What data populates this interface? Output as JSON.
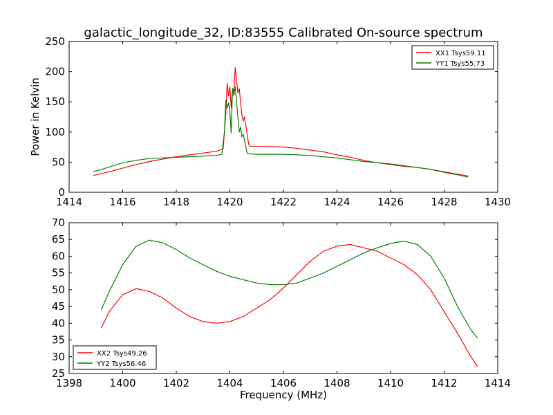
{
  "figure": {
    "title": "galactic_longitude_32, ID:83555 Calibrated On-source spectrum"
  },
  "chart_data": [
    {
      "type": "line",
      "title": "galactic_longitude_32, ID:83555 Calibrated On-source spectrum",
      "xlabel": "",
      "ylabel": "Power in Kelvin",
      "xlim": [
        1414,
        1430
      ],
      "ylim": [
        0,
        250
      ],
      "xticks": [
        1414,
        1416,
        1418,
        1420,
        1422,
        1424,
        1426,
        1428,
        1430
      ],
      "yticks": [
        0,
        50,
        100,
        150,
        200,
        250
      ],
      "grid": false,
      "legend": "top-right",
      "series": [
        {
          "name": "XX1 Tsys59.11",
          "color": "#ff0000",
          "x": [
            1414.9,
            1415.5,
            1416,
            1416.5,
            1417,
            1417.5,
            1418,
            1418.5,
            1419,
            1419.5,
            1419.75,
            1419.85,
            1419.9,
            1419.95,
            1420.0,
            1420.05,
            1420.1,
            1420.15,
            1420.2,
            1420.25,
            1420.3,
            1420.35,
            1420.4,
            1420.45,
            1420.5,
            1420.55,
            1420.6,
            1420.65,
            1420.7,
            1420.75,
            1421,
            1421.5,
            1422,
            1422.5,
            1423,
            1423.5,
            1424,
            1424.5,
            1425,
            1425.5,
            1426,
            1426.5,
            1427,
            1427.5,
            1428,
            1428.5,
            1428.9
          ],
          "y": [
            28,
            34,
            40,
            46,
            51,
            55,
            59,
            62,
            65,
            68,
            72,
            130,
            181,
            160,
            175,
            140,
            172,
            168,
            207,
            185,
            165,
            172,
            150,
            128,
            118,
            125,
            110,
            95,
            80,
            76,
            76,
            76,
            75,
            73,
            70,
            67,
            62,
            58,
            53,
            49,
            46,
            43,
            41,
            38,
            34,
            30,
            27
          ]
        },
        {
          "name": "YY1 Tsys55.73",
          "color": "#008000",
          "x": [
            1414.9,
            1415.5,
            1416,
            1416.5,
            1417,
            1417.5,
            1418,
            1418.5,
            1419,
            1419.5,
            1419.7,
            1419.8,
            1419.85,
            1419.9,
            1419.95,
            1420.0,
            1420.05,
            1420.1,
            1420.15,
            1420.2,
            1420.25,
            1420.3,
            1420.35,
            1420.4,
            1420.45,
            1420.5,
            1420.55,
            1420.6,
            1420.65,
            1421,
            1421.5,
            1422,
            1422.5,
            1423,
            1423.5,
            1424,
            1424.5,
            1425,
            1425.5,
            1426,
            1426.5,
            1427,
            1427.5,
            1428,
            1428.5,
            1428.9
          ],
          "y": [
            34,
            42,
            49,
            53,
            56,
            57,
            58,
            59,
            60,
            61,
            63,
            100,
            153,
            140,
            148,
            135,
            98,
            172,
            160,
            175,
            150,
            125,
            100,
            108,
            92,
            96,
            85,
            75,
            64,
            63,
            63,
            63,
            62,
            61,
            59,
            57,
            54,
            51,
            49,
            47,
            44,
            41,
            38,
            33,
            29,
            25
          ]
        }
      ]
    },
    {
      "type": "line",
      "title": "",
      "xlabel": "Frequency (MHz)",
      "ylabel": "",
      "xlim": [
        1398,
        1414
      ],
      "ylim": [
        25,
        70
      ],
      "xticks": [
        1398,
        1400,
        1402,
        1404,
        1406,
        1408,
        1410,
        1412,
        1414
      ],
      "yticks": [
        25,
        30,
        35,
        40,
        45,
        50,
        55,
        60,
        65,
        70
      ],
      "grid": false,
      "legend": "bottom-left",
      "series": [
        {
          "name": "XX2 Tsys49.26",
          "color": "#ff0000",
          "x": [
            1399.2,
            1399.5,
            1400,
            1400.5,
            1401,
            1401.5,
            1402,
            1402.5,
            1403,
            1403.5,
            1404,
            1404.5,
            1405,
            1405.5,
            1406,
            1406.5,
            1407,
            1407.5,
            1408,
            1408.5,
            1409,
            1409.5,
            1410,
            1410.5,
            1411,
            1411.5,
            1412,
            1412.5,
            1413,
            1413.25
          ],
          "y": [
            38.5,
            43.5,
            48.5,
            50.3,
            49.5,
            47.5,
            44.5,
            42,
            40.5,
            40,
            40.5,
            42,
            44.5,
            47,
            50.5,
            54.5,
            58.5,
            61.5,
            63,
            63.5,
            62.5,
            61.5,
            59.5,
            57.5,
            54.5,
            50,
            43.5,
            37,
            30,
            27
          ]
        },
        {
          "name": "YY2 Tsys56.46",
          "color": "#008000",
          "x": [
            1399.2,
            1399.5,
            1400,
            1400.5,
            1401,
            1401.5,
            1402,
            1402.5,
            1403,
            1403.5,
            1404,
            1404.5,
            1405,
            1405.5,
            1406,
            1406.5,
            1407,
            1407.5,
            1408,
            1408.5,
            1409,
            1409.5,
            1410,
            1410.5,
            1411,
            1411.5,
            1412,
            1412.5,
            1413,
            1413.25
          ],
          "y": [
            44,
            49.5,
            57.5,
            63,
            64.8,
            64,
            62,
            59.5,
            57.5,
            55.5,
            54,
            53,
            52,
            51.5,
            51.5,
            52,
            53.5,
            55,
            57,
            59,
            61,
            62.5,
            63.8,
            64.5,
            63.5,
            60,
            53.5,
            45,
            38,
            35.5
          ]
        }
      ]
    }
  ]
}
